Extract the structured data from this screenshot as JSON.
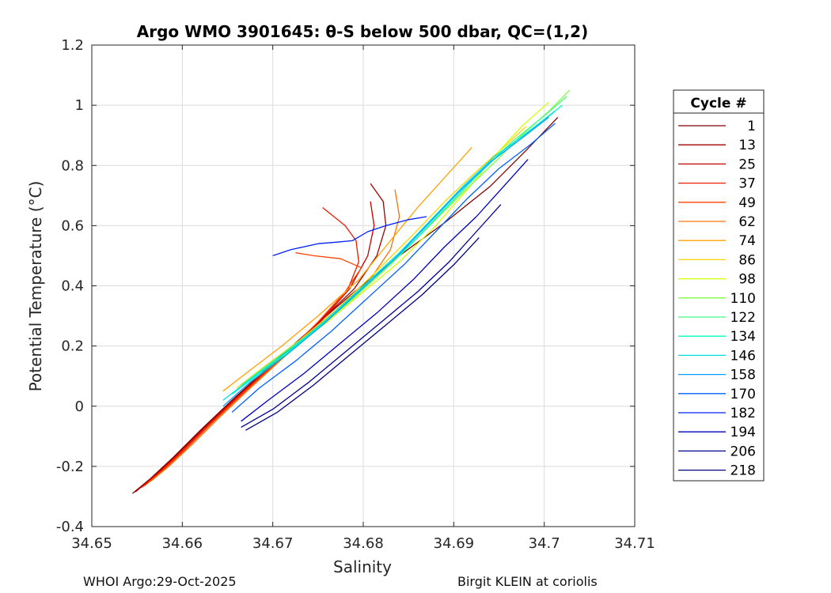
{
  "chart_data": {
    "type": "line",
    "title": "Argo WMO 3901645: θ-S below 500 dbar,  QC=(1,2)",
    "xlabel": "Salinity",
    "ylabel": "Potential Temperature (°C)",
    "xlim": [
      34.65,
      34.71
    ],
    "ylim": [
      -0.4,
      1.2
    ],
    "x_ticks": [
      34.65,
      34.66,
      34.67,
      34.68,
      34.69,
      34.7,
      34.71
    ],
    "x_tick_labels": [
      "34.65",
      "34.66",
      "34.67",
      "34.68",
      "34.69",
      "34.7",
      "34.71"
    ],
    "y_ticks": [
      -0.4,
      -0.2,
      0,
      0.2,
      0.4,
      0.6,
      0.8,
      1,
      1.2
    ],
    "y_tick_labels": [
      "-0.4",
      "-0.2",
      "0",
      "0.2",
      "0.4",
      "0.6",
      "0.8",
      "1",
      "1.2"
    ],
    "grid": true,
    "legend_title": "Cycle #",
    "legend_placement": "right-outside",
    "series": [
      {
        "name": "1",
        "color": "#800000",
        "x": [
          34.6545,
          34.6565,
          34.659,
          34.662,
          34.6655,
          34.6695,
          34.674,
          34.679,
          34.684,
          34.689,
          34.694,
          34.698,
          34.7015
        ],
        "y": [
          -0.29,
          -0.24,
          -0.17,
          -0.08,
          0.02,
          0.13,
          0.25,
          0.38,
          0.5,
          0.61,
          0.73,
          0.85,
          0.96
        ]
      },
      {
        "name": "13",
        "color": "#a30000",
        "x": [
          34.6548,
          34.6568,
          34.6593,
          34.6623,
          34.6658,
          34.6698,
          34.6743,
          34.679,
          34.6815,
          34.6825,
          34.6822,
          34.6808
        ],
        "y": [
          -0.285,
          -0.235,
          -0.165,
          -0.075,
          0.025,
          0.135,
          0.255,
          0.39,
          0.5,
          0.6,
          0.68,
          0.74
        ]
      },
      {
        "name": "25",
        "color": "#c50000",
        "x": [
          34.655,
          34.657,
          34.6595,
          34.6625,
          34.666,
          34.67,
          34.6745,
          34.6785,
          34.6805,
          34.6812,
          34.6808
        ],
        "y": [
          -0.28,
          -0.23,
          -0.16,
          -0.07,
          0.03,
          0.14,
          0.26,
          0.39,
          0.5,
          0.6,
          0.68
        ]
      },
      {
        "name": "37",
        "color": "#e61c00",
        "x": [
          34.6555,
          34.6575,
          34.66,
          34.663,
          34.6665,
          34.6705,
          34.675,
          34.6782,
          34.6795,
          34.6792,
          34.678,
          34.6755
        ],
        "y": [
          -0.27,
          -0.22,
          -0.15,
          -0.06,
          0.04,
          0.15,
          0.27,
          0.38,
          0.48,
          0.55,
          0.6,
          0.66
        ]
      },
      {
        "name": "49",
        "color": "#ff4000",
        "x": [
          34.6558,
          34.6578,
          34.6603,
          34.6633,
          34.6668,
          34.6708,
          34.675,
          34.678,
          34.6798,
          34.6775,
          34.6745,
          34.6725
        ],
        "y": [
          -0.265,
          -0.215,
          -0.145,
          -0.055,
          0.045,
          0.155,
          0.28,
          0.38,
          0.46,
          0.49,
          0.5,
          0.51
        ]
      },
      {
        "name": "62",
        "color": "#ff7000",
        "x": [
          34.6565,
          34.6585,
          34.661,
          34.664,
          34.6675,
          34.6715,
          34.676,
          34.6805,
          34.683,
          34.684,
          34.6835
        ],
        "y": [
          -0.25,
          -0.2,
          -0.13,
          -0.04,
          0.06,
          0.17,
          0.29,
          0.41,
          0.52,
          0.63,
          0.72
        ]
      },
      {
        "name": "74",
        "color": "#ffa000",
        "x": [
          34.6645,
          34.6675,
          34.671,
          34.675,
          34.6795,
          34.683,
          34.686,
          34.689,
          34.692
        ],
        "y": [
          0.05,
          0.12,
          0.2,
          0.3,
          0.42,
          0.55,
          0.66,
          0.76,
          0.86
        ]
      },
      {
        "name": "86",
        "color": "#ffd200",
        "x": [
          34.666,
          34.669,
          34.673,
          34.677,
          34.6815,
          34.6855,
          34.689,
          34.6925,
          34.6955,
          34.698
        ],
        "y": [
          0.06,
          0.13,
          0.22,
          0.32,
          0.45,
          0.57,
          0.68,
          0.78,
          0.86,
          0.93
        ]
      },
      {
        "name": "98",
        "color": "#d0ff00",
        "x": [
          34.669,
          34.6725,
          34.676,
          34.68,
          34.684,
          34.688,
          34.6915,
          34.6945,
          34.6975,
          34.7005
        ],
        "y": [
          0.12,
          0.2,
          0.28,
          0.38,
          0.48,
          0.6,
          0.72,
          0.83,
          0.93,
          1.01
        ]
      },
      {
        "name": "110",
        "color": "#80ff40",
        "x": [
          34.6675,
          34.671,
          34.675,
          34.679,
          34.683,
          34.687,
          34.691,
          34.6945,
          34.6975,
          34.7005,
          34.7028
        ],
        "y": [
          0.08,
          0.16,
          0.26,
          0.36,
          0.47,
          0.59,
          0.71,
          0.81,
          0.9,
          0.98,
          1.05
        ]
      },
      {
        "name": "122",
        "color": "#40ff80",
        "x": [
          34.6665,
          34.67,
          34.674,
          34.678,
          34.682,
          34.686,
          34.6895,
          34.693,
          34.6965,
          34.6998,
          34.7025
        ],
        "y": [
          0.07,
          0.15,
          0.24,
          0.34,
          0.45,
          0.56,
          0.67,
          0.78,
          0.88,
          0.96,
          1.03
        ]
      },
      {
        "name": "134",
        "color": "#00ffc0",
        "x": [
          34.6655,
          34.669,
          34.673,
          34.677,
          34.681,
          34.685,
          34.6885,
          34.692,
          34.6955,
          34.699,
          34.702
        ],
        "y": [
          0.04,
          0.12,
          0.21,
          0.31,
          0.42,
          0.53,
          0.64,
          0.75,
          0.85,
          0.93,
          1.0
        ]
      },
      {
        "name": "146",
        "color": "#00e0e0",
        "x": [
          34.6645,
          34.668,
          34.672,
          34.676,
          34.68,
          34.684,
          34.6875,
          34.691,
          34.6945,
          34.6982,
          34.7012
        ],
        "y": [
          0.02,
          0.1,
          0.19,
          0.29,
          0.4,
          0.51,
          0.62,
          0.73,
          0.83,
          0.91,
          0.98
        ]
      },
      {
        "name": "158",
        "color": "#00a0ff",
        "x": [
          34.6645,
          34.6675,
          34.6715,
          34.6755,
          34.6795,
          34.6835,
          34.687,
          34.6905,
          34.694,
          34.6975,
          34.7005
        ],
        "y": [
          0.0,
          0.08,
          0.17,
          0.27,
          0.38,
          0.49,
          0.6,
          0.71,
          0.81,
          0.89,
          0.96
        ]
      },
      {
        "name": "170",
        "color": "#0060ff",
        "x": [
          34.6655,
          34.6685,
          34.6725,
          34.6765,
          34.6805,
          34.6845,
          34.688,
          34.6915,
          34.695,
          34.6985,
          34.7012
        ],
        "y": [
          -0.02,
          0.06,
          0.15,
          0.25,
          0.36,
          0.47,
          0.58,
          0.69,
          0.79,
          0.87,
          0.94
        ]
      },
      {
        "name": "182",
        "color": "#0020ff",
        "x": [
          34.67,
          34.672,
          34.675,
          34.677,
          34.6788,
          34.6805,
          34.6825,
          34.685,
          34.687
        ],
        "y": [
          0.5,
          0.52,
          0.54,
          0.545,
          0.55,
          0.58,
          0.6,
          0.62,
          0.63
        ]
      },
      {
        "name": "194",
        "color": "#0000c0",
        "x": [
          34.6665,
          34.6695,
          34.6735,
          34.6775,
          34.6815,
          34.6855,
          34.689,
          34.6925,
          34.6955,
          34.6982
        ],
        "y": [
          -0.05,
          0.02,
          0.11,
          0.21,
          0.31,
          0.42,
          0.53,
          0.63,
          0.73,
          0.82
        ]
      },
      {
        "name": "206",
        "color": "#000090",
        "x": [
          34.6665,
          34.67,
          34.674,
          34.678,
          34.682,
          34.686,
          34.6895,
          34.6925,
          34.6952
        ],
        "y": [
          -0.07,
          -0.01,
          0.08,
          0.18,
          0.28,
          0.38,
          0.48,
          0.58,
          0.67
        ]
      },
      {
        "name": "218",
        "color": "#000080",
        "x": [
          34.667,
          34.6705,
          34.6745,
          34.6785,
          34.6825,
          34.6865,
          34.69,
          34.6928
        ],
        "y": [
          -0.08,
          -0.02,
          0.07,
          0.17,
          0.27,
          0.37,
          0.47,
          0.56
        ]
      }
    ]
  },
  "footer": {
    "left": "WHOI Argo:29-Oct-2025",
    "right": "Birgit KLEIN at coriolis"
  }
}
